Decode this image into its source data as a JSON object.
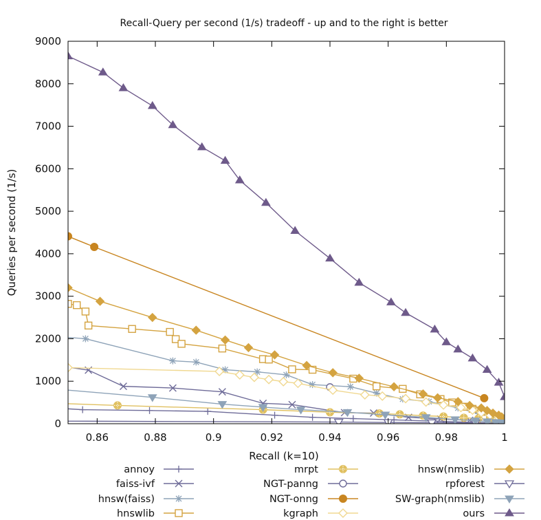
{
  "chart_data": {
    "type": "line",
    "title": "Recall-Query per second (1/s) tradeoff - up and to the right is better",
    "xlabel": "Recall (k=10)",
    "ylabel": "Queries per second (1/s)",
    "xlim": [
      0.85,
      1.0
    ],
    "ylim": [
      0,
      9000
    ],
    "xticks": [
      "0.86",
      "0.88",
      "0.9",
      "0.92",
      "0.94",
      "0.96",
      "0.98",
      "1"
    ],
    "yticks": [
      "0",
      "1000",
      "2000",
      "3000",
      "4000",
      "5000",
      "6000",
      "7000",
      "8000",
      "9000"
    ],
    "grid": false,
    "legend_position": "below",
    "series": [
      {
        "name": "annoy",
        "color": "#6e6b98",
        "marker": "plus",
        "x": [
          0.85,
          0.855,
          0.878,
          0.898,
          0.921,
          0.934,
          0.948,
          0.962,
          0.976,
          0.99,
          0.999
        ],
        "y": [
          350,
          330,
          310,
          290,
          200,
          150,
          120,
          90,
          60,
          30,
          10
        ]
      },
      {
        "name": "faiss-ivf",
        "color": "#6e6b98",
        "marker": "x",
        "x": [
          0.85,
          0.857,
          0.869,
          0.886,
          0.903,
          0.917,
          0.927,
          0.945,
          0.955,
          0.967,
          0.978,
          0.988,
          0.997,
          1.0
        ],
        "y": [
          1330,
          1260,
          880,
          840,
          750,
          480,
          450,
          260,
          250,
          150,
          110,
          80,
          40,
          30
        ]
      },
      {
        "name": "hnsw(faiss)",
        "color": "#8ea3b8",
        "marker": "star",
        "x": [
          0.85,
          0.856,
          0.886,
          0.894,
          0.904,
          0.915,
          0.925,
          0.934,
          0.947,
          0.956,
          0.965,
          0.974,
          0.984,
          0.991,
          0.995,
          0.998
        ],
        "y": [
          2030,
          2000,
          1480,
          1450,
          1270,
          1220,
          1150,
          920,
          870,
          720,
          580,
          520,
          370,
          240,
          180,
          110
        ]
      },
      {
        "name": "hnswlib",
        "color": "#d4a340",
        "marker": "square",
        "x": [
          0.85,
          0.853,
          0.856,
          0.857,
          0.872,
          0.885,
          0.887,
          0.889,
          0.903,
          0.917,
          0.919,
          0.927,
          0.934,
          0.948,
          0.956,
          0.965,
          0.971,
          0.978,
          0.982,
          0.986,
          0.989,
          0.992,
          0.995,
          0.998,
          0.999
        ],
        "y": [
          2820,
          2790,
          2640,
          2310,
          2230,
          2160,
          1990,
          1880,
          1770,
          1520,
          1510,
          1280,
          1270,
          1060,
          880,
          820,
          690,
          580,
          500,
          400,
          350,
          280,
          220,
          160,
          120
        ]
      },
      {
        "name": "mrpt",
        "color": "#e0c060",
        "marker": "circle-hatched",
        "x": [
          0.85,
          0.867,
          0.917,
          0.94,
          0.957,
          0.964,
          0.972,
          0.979,
          0.986,
          0.991,
          0.995,
          0.998,
          0.999
        ],
        "y": [
          470,
          430,
          330,
          270,
          240,
          220,
          190,
          170,
          140,
          120,
          100,
          80,
          70
        ]
      },
      {
        "name": "NGT-panng",
        "color": "#6e6b98",
        "marker": "circle-open",
        "x": [
          0.94
        ],
        "y": [
          860
        ]
      },
      {
        "name": "NGT-onng",
        "color": "#c88520",
        "marker": "circle",
        "x": [
          0.85,
          0.859,
          0.993
        ],
        "y": [
          4410,
          4160,
          600
        ]
      },
      {
        "name": "kgraph",
        "color": "#f0d890",
        "marker": "diamond-open",
        "x": [
          0.85,
          0.902,
          0.909,
          0.914,
          0.919,
          0.924,
          0.929,
          0.941,
          0.952,
          0.958,
          0.966,
          0.973,
          0.979,
          0.985,
          0.989,
          0.992,
          0.995,
          0.998,
          1.0
        ],
        "y": [
          1320,
          1230,
          1150,
          1090,
          1040,
          990,
          950,
          790,
          680,
          650,
          590,
          510,
          440,
          380,
          320,
          260,
          200,
          140,
          90
        ]
      },
      {
        "name": "hnsw(nmslib)",
        "color": "#d4a340",
        "marker": "diamond",
        "x": [
          0.85,
          0.861,
          0.879,
          0.894,
          0.904,
          0.912,
          0.921,
          0.932,
          0.941,
          0.95,
          0.962,
          0.972,
          0.977,
          0.984,
          0.988,
          0.992,
          0.994,
          0.996,
          0.998,
          0.999,
          1.0
        ],
        "y": [
          3200,
          2880,
          2500,
          2200,
          1970,
          1790,
          1620,
          1370,
          1200,
          1070,
          870,
          700,
          610,
          520,
          430,
          370,
          310,
          250,
          200,
          160,
          120
        ]
      },
      {
        "name": "rpforest",
        "color": "#6e6b98",
        "marker": "triangle-down-open",
        "x": [
          0.85,
          0.943,
          0.96,
          0.975,
          0.99,
          0.999
        ],
        "y": [
          60,
          40,
          30,
          25,
          18,
          10
        ]
      },
      {
        "name": "SW-graph(nmslib)",
        "color": "#8ea3b8",
        "marker": "triangle-down",
        "x": [
          0.85,
          0.879,
          0.903,
          0.917,
          0.93,
          0.946,
          0.959,
          0.973,
          0.983,
          0.99,
          0.994,
          0.997,
          0.999
        ],
        "y": [
          790,
          620,
          460,
          390,
          330,
          270,
          210,
          150,
          100,
          70,
          50,
          35,
          25
        ]
      },
      {
        "name": "ours",
        "color": "#6e5a8a",
        "marker": "triangle",
        "x": [
          0.85,
          0.862,
          0.869,
          0.879,
          0.886,
          0.896,
          0.904,
          0.909,
          0.918,
          0.928,
          0.94,
          0.95,
          0.961,
          0.966,
          0.976,
          0.98,
          0.984,
          0.989,
          0.994,
          0.998,
          1.0
        ],
        "y": [
          8650,
          8270,
          7900,
          7480,
          7030,
          6510,
          6190,
          5730,
          5200,
          4540,
          3890,
          3320,
          2860,
          2610,
          2220,
          1920,
          1750,
          1540,
          1270,
          970,
          630
        ]
      }
    ]
  }
}
